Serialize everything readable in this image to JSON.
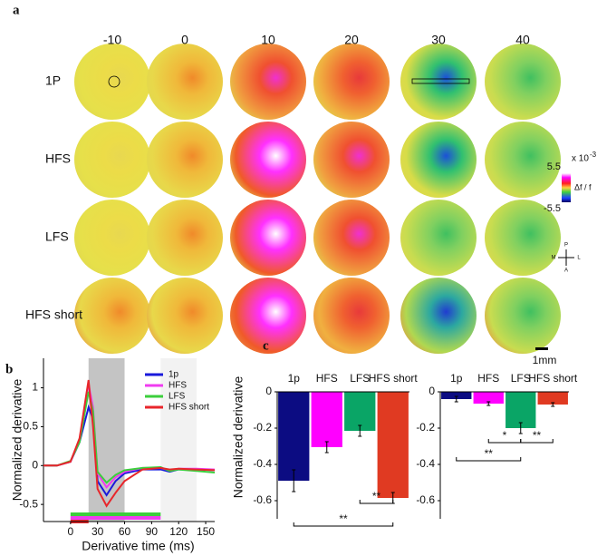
{
  "panel_a": {
    "label": "a",
    "columns": [
      "-10",
      "0",
      "10",
      "20",
      "30",
      "40"
    ],
    "rows": [
      "1P",
      "HFS",
      "LFS",
      "HFS short"
    ],
    "colorbar": {
      "multiplier": "x 10",
      "power": "-3",
      "max": "5.5",
      "quantity": "Δf / f",
      "min": "-5.5"
    },
    "compass": [
      "P",
      "M",
      "L",
      "A"
    ],
    "scale_bar": "1mm"
  },
  "chart_data": [
    {
      "type": "line",
      "label": "b",
      "xlabel": "Derivative time (ms)",
      "ylabel": "Normalized derivative",
      "x": [
        -30,
        -15,
        0,
        10,
        20,
        25,
        30,
        40,
        50,
        60,
        80,
        100,
        110,
        120,
        140,
        160
      ],
      "series": [
        {
          "name": "1p",
          "color": "#1a1adb",
          "values": [
            0,
            0,
            0.05,
            0.3,
            0.75,
            0.6,
            -0.2,
            -0.38,
            -0.2,
            -0.1,
            -0.05,
            -0.05,
            -0.08,
            -0.05,
            -0.05,
            -0.06
          ]
        },
        {
          "name": "HFS",
          "color": "#f03cf0",
          "values": [
            0,
            0,
            0.05,
            0.32,
            1.05,
            0.75,
            -0.1,
            -0.28,
            -0.15,
            -0.08,
            -0.03,
            -0.03,
            -0.06,
            -0.04,
            -0.04,
            -0.05
          ]
        },
        {
          "name": "LFS",
          "color": "#3ccf3c",
          "values": [
            0,
            0,
            0.06,
            0.3,
            0.95,
            0.7,
            -0.08,
            -0.22,
            -0.12,
            -0.06,
            -0.03,
            -0.02,
            -0.07,
            -0.05,
            -0.07,
            -0.09
          ]
        },
        {
          "name": "HFS short",
          "color": "#e8262b",
          "values": [
            0,
            0,
            0.05,
            0.35,
            1.1,
            0.5,
            -0.3,
            -0.52,
            -0.35,
            -0.2,
            -0.05,
            -0.03,
            -0.05,
            -0.04,
            -0.05,
            -0.06
          ]
        }
      ],
      "shaded": [
        {
          "x": [
            20,
            60
          ],
          "color": "#c4c4c4"
        },
        {
          "x": [
            100,
            140
          ],
          "color": "#f2f2f2"
        }
      ],
      "spans": [
        {
          "x": [
            0,
            100
          ],
          "color": "#3ccf3c"
        },
        {
          "x": [
            0,
            100
          ],
          "color": "#f03cf0"
        },
        {
          "x": [
            0,
            20
          ],
          "color": "#e8262b"
        }
      ],
      "xlim": [
        -30,
        160
      ],
      "xticks": [
        0,
        30,
        60,
        90,
        120,
        150
      ],
      "ylim": [
        -0.72,
        1.38
      ],
      "yticks": [
        -0.5,
        0,
        0.5,
        1
      ]
    },
    {
      "type": "bar",
      "label": "c",
      "ylabel": "Normalized derivative",
      "categories": [
        "1p",
        "HFS",
        "LFS",
        "HFS short"
      ],
      "colors": [
        "#0c0c82",
        "#ff00ff",
        "#0aa566",
        "#e03a22"
      ],
      "values": [
        -0.49,
        -0.305,
        -0.215,
        -0.585
      ],
      "errors": [
        0.06,
        0.03,
        0.03,
        0.03
      ],
      "significance": [
        {
          "between": [
            2,
            3
          ],
          "label": "**"
        },
        {
          "between": [
            0,
            3
          ],
          "label": "**"
        }
      ],
      "ylim": [
        -0.7,
        0
      ],
      "yticks": [
        0,
        -0.2,
        -0.4,
        -0.6
      ]
    },
    {
      "type": "bar",
      "categories": [
        "1p",
        "HFS",
        "LFS",
        "HFS short"
      ],
      "colors": [
        "#0c0c82",
        "#ff00ff",
        "#0aa566",
        "#e03a22"
      ],
      "values": [
        -0.04,
        -0.065,
        -0.2,
        -0.07
      ],
      "errors": [
        0.015,
        0.01,
        0.03,
        0.01
      ],
      "significance": [
        {
          "between": [
            1,
            2
          ],
          "label": "*"
        },
        {
          "between": [
            2,
            3
          ],
          "label": "**"
        },
        {
          "between": [
            0,
            2
          ],
          "label": "**"
        }
      ],
      "ylim": [
        -0.7,
        0
      ],
      "yticks": [
        0,
        -0.2,
        -0.4,
        -0.6
      ]
    }
  ]
}
